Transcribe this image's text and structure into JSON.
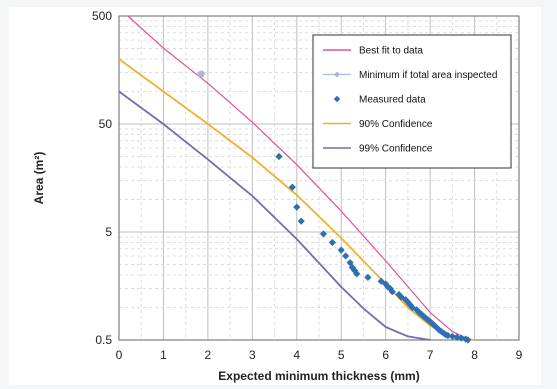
{
  "chart_data": {
    "type": "scatter",
    "xlabel": "Expected minimum thickness (mm)",
    "ylabel": "Area (m²)",
    "xlim": [
      0,
      9
    ],
    "ylim": [
      0.5,
      500
    ],
    "yscale": "log",
    "x_ticks": [
      "0",
      "1",
      "2",
      "3",
      "4",
      "5",
      "6",
      "7",
      "8",
      "9"
    ],
    "y_ticks": [
      {
        "value": 500,
        "label": "500"
      },
      {
        "value": 50,
        "label": "50"
      },
      {
        "value": 5,
        "label": "5"
      },
      {
        "value": 0.5,
        "label": "0.5"
      }
    ],
    "grid": true,
    "legend_position": "top-right",
    "series": [
      {
        "name": "Best fit to data",
        "kind": "line",
        "color": "#e0509a",
        "points": [
          [
            0.2,
            500
          ],
          [
            1,
            252
          ],
          [
            2,
            119
          ],
          [
            3,
            52
          ],
          [
            4,
            21
          ],
          [
            5,
            7.8
          ],
          [
            6,
            2.7
          ],
          [
            7,
            0.9
          ],
          [
            7.5,
            0.6
          ],
          [
            7.9,
            0.5
          ]
        ]
      },
      {
        "name": "Minimum if total area inspected",
        "kind": "marker",
        "color": "#a9b8d6",
        "points": [
          [
            1.85,
            145
          ]
        ]
      },
      {
        "name": "Measured data",
        "kind": "scatter",
        "color": "#2e6fb2",
        "points": [
          [
            3.6,
            25
          ],
          [
            3.9,
            13
          ],
          [
            4.0,
            8.5
          ],
          [
            4.1,
            6.3
          ],
          [
            4.6,
            4.8
          ],
          [
            4.8,
            4.0
          ],
          [
            5.0,
            3.4
          ],
          [
            5.1,
            3.0
          ],
          [
            5.2,
            2.6
          ],
          [
            5.25,
            2.35
          ],
          [
            5.3,
            2.2
          ],
          [
            5.35,
            2.05
          ],
          [
            5.6,
            1.9
          ],
          [
            5.9,
            1.75
          ],
          [
            6.0,
            1.65
          ],
          [
            6.05,
            1.55
          ],
          [
            6.1,
            1.5
          ],
          [
            6.15,
            1.4
          ],
          [
            6.3,
            1.32
          ],
          [
            6.35,
            1.25
          ],
          [
            6.45,
            1.18
          ],
          [
            6.5,
            1.12
          ],
          [
            6.55,
            1.06
          ],
          [
            6.6,
            1.0
          ],
          [
            6.7,
            0.95
          ],
          [
            6.75,
            0.9
          ],
          [
            6.8,
            0.87
          ],
          [
            6.85,
            0.83
          ],
          [
            6.9,
            0.8
          ],
          [
            6.95,
            0.77
          ],
          [
            7.0,
            0.74
          ],
          [
            7.05,
            0.71
          ],
          [
            7.1,
            0.68
          ],
          [
            7.15,
            0.65
          ],
          [
            7.2,
            0.62
          ],
          [
            7.25,
            0.6
          ],
          [
            7.3,
            0.58
          ],
          [
            7.35,
            0.56
          ],
          [
            7.4,
            0.55
          ],
          [
            7.5,
            0.54
          ],
          [
            7.6,
            0.53
          ],
          [
            7.7,
            0.52
          ],
          [
            7.8,
            0.51
          ],
          [
            7.85,
            0.5
          ]
        ]
      },
      {
        "name": "90% Confidence",
        "kind": "line",
        "color": "#f0b030",
        "points": [
          [
            0,
            200
          ],
          [
            1,
            100
          ],
          [
            2,
            50
          ],
          [
            3,
            24.5
          ],
          [
            4,
            11
          ],
          [
            5,
            4.4
          ],
          [
            6,
            1.65
          ],
          [
            6.5,
            1.0
          ],
          [
            7,
            0.68
          ],
          [
            7.5,
            0.53
          ],
          [
            8,
            0.5
          ]
        ]
      },
      {
        "name": "99% Confidence",
        "kind": "line",
        "color": "#7a68b0",
        "points": [
          [
            0,
            100
          ],
          [
            1,
            50
          ],
          [
            2,
            23.5
          ],
          [
            3,
            10.8
          ],
          [
            4,
            4.3
          ],
          [
            5,
            1.55
          ],
          [
            5.5,
            0.98
          ],
          [
            6,
            0.66
          ],
          [
            6.5,
            0.54
          ],
          [
            7,
            0.5
          ]
        ]
      }
    ]
  }
}
